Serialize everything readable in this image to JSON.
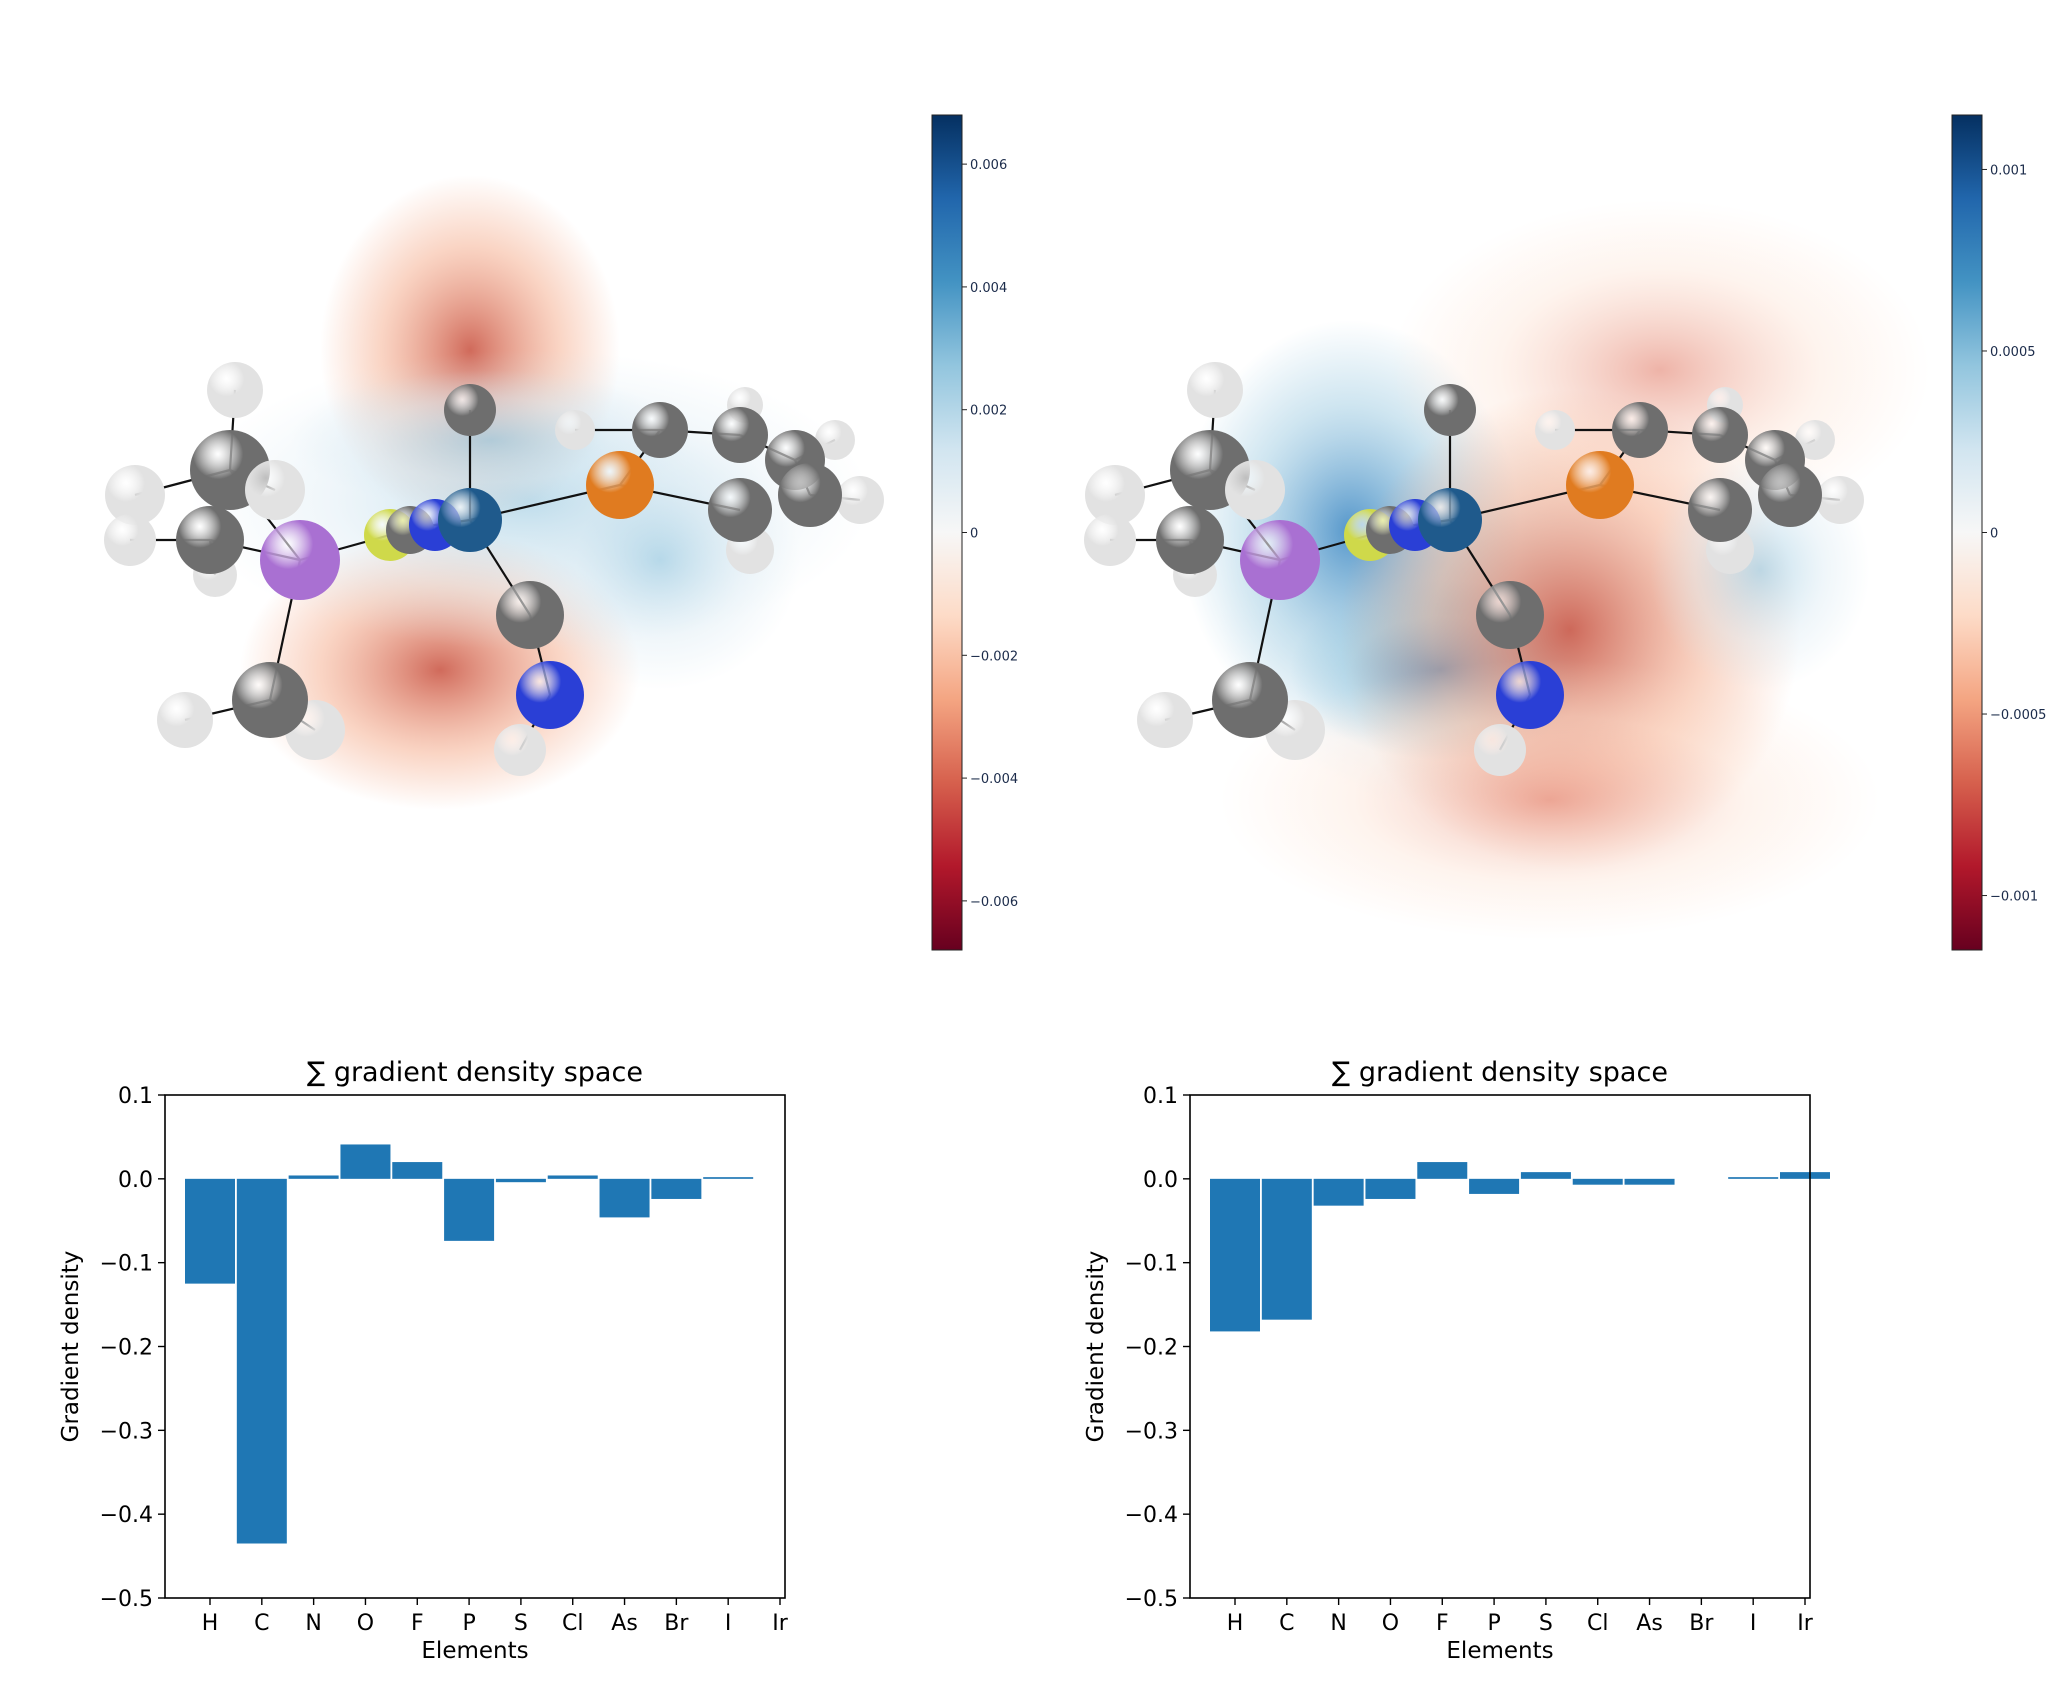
{
  "molecule_panels": [
    {
      "colorbar": {
        "min": -0.0068,
        "max": 0.0068,
        "ticks": [
          0.006,
          0.004,
          0.002,
          0,
          -0.002,
          -0.004,
          -0.006
        ],
        "tick_labels": [
          "0.006",
          "0.004",
          "0.002",
          "0",
          "−0.002",
          "−0.004",
          "−0.006"
        ],
        "colormap": [
          "#67001f",
          "#b2182b",
          "#d6604d",
          "#f4a582",
          "#fddbc7",
          "#f7f7f7",
          "#d1e5f0",
          "#92c5de",
          "#4393c3",
          "#2166ac",
          "#053061"
        ]
      }
    },
    {
      "colorbar": {
        "min": -0.00115,
        "max": 0.00115,
        "ticks": [
          0.001,
          0.0005,
          0,
          -0.0005,
          -0.001
        ],
        "tick_labels": [
          "0.001",
          "0.0005",
          "0",
          "−0.0005",
          "−0.001"
        ],
        "colormap": [
          "#67001f",
          "#b2182b",
          "#d6604d",
          "#f4a582",
          "#fddbc7",
          "#f7f7f7",
          "#d1e5f0",
          "#92c5de",
          "#4393c3",
          "#2166ac",
          "#053061"
        ]
      }
    }
  ],
  "atom_colors": {
    "carbon": "#6e6e6e",
    "hydrogen": "#e2e2e2",
    "nitrogen": "#2a3fd6",
    "oxygen": "#e07b20",
    "arsenic": "#a970d2",
    "sulfur": "#cfd94a",
    "iridium": "#1f5a8c",
    "bond": "#111111"
  },
  "chart_data": [
    {
      "type": "bar",
      "title": "∑ gradient density space",
      "xlabel": "Elements",
      "ylabel": "Gradient density",
      "categories": [
        "H",
        "C",
        "N",
        "O",
        "F",
        "P",
        "S",
        "Cl",
        "As",
        "Br",
        "I",
        "Ir"
      ],
      "values": [
        -0.125,
        -0.435,
        0.004,
        0.041,
        0.02,
        -0.074,
        -0.004,
        0.004,
        -0.046,
        -0.024,
        0.002,
        0.0
      ],
      "ylim": [
        -0.5,
        0.1
      ],
      "yticks": [
        0.1,
        0.0,
        -0.1,
        -0.2,
        -0.3,
        -0.4,
        -0.5
      ],
      "ytick_labels": [
        "0.1",
        "0.0",
        "−0.1",
        "−0.2",
        "−0.3",
        "−0.4",
        "−0.5"
      ],
      "bar_color": "#1f77b4",
      "grid": false
    },
    {
      "type": "bar",
      "title": "∑ gradient density space",
      "xlabel": "Elements",
      "ylabel": "Gradient density",
      "categories": [
        "H",
        "C",
        "N",
        "O",
        "F",
        "P",
        "S",
        "Cl",
        "As",
        "Br",
        "I",
        "Ir"
      ],
      "values": [
        -0.182,
        -0.168,
        -0.032,
        -0.024,
        0.02,
        -0.018,
        0.008,
        -0.007,
        -0.007,
        0.0,
        0.002,
        0.008
      ],
      "ylim": [
        -0.5,
        0.1
      ],
      "yticks": [
        0.1,
        0.0,
        -0.1,
        -0.2,
        -0.3,
        -0.4,
        -0.5
      ],
      "ytick_labels": [
        "0.1",
        "0.0",
        "−0.1",
        "−0.2",
        "−0.3",
        "−0.4",
        "−0.5"
      ],
      "bar_color": "#1f77b4",
      "grid": false
    }
  ]
}
